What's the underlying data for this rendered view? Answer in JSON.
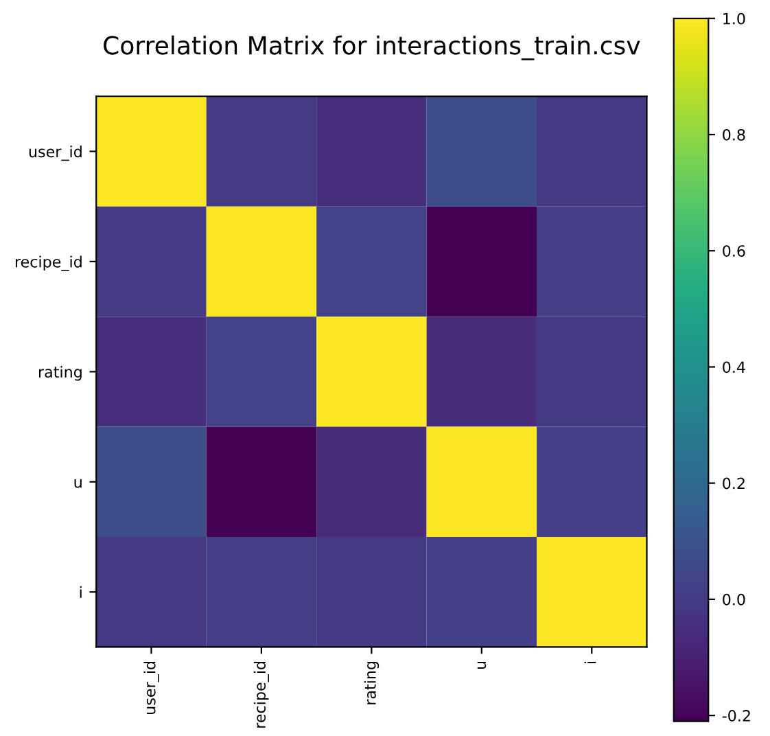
{
  "chart_data": {
    "type": "heatmap",
    "title": "Correlation Matrix for interactions_train.csv",
    "categories": [
      "user_id",
      "recipe_id",
      "rating",
      "u",
      "i"
    ],
    "y_categories": [
      "user_id",
      "recipe_id",
      "rating",
      "u",
      "i"
    ],
    "cells": [
      [
        1.0,
        0.0,
        -0.05,
        0.07,
        -0.02
      ],
      [
        0.0,
        1.0,
        0.03,
        -0.21,
        0.01
      ],
      [
        -0.05,
        0.03,
        1.0,
        -0.06,
        -0.01
      ],
      [
        0.07,
        -0.21,
        -0.06,
        1.0,
        0.02
      ],
      [
        -0.02,
        0.01,
        -0.01,
        0.02,
        1.0
      ]
    ],
    "clim": [
      -0.21,
      1.0
    ],
    "cticks": [
      -0.2,
      {
        "value": 0,
        "label": "0.0"
      },
      0.2,
      0.4,
      0.6,
      0.8,
      {
        "value": 1,
        "label": "1.0"
      }
    ]
  }
}
